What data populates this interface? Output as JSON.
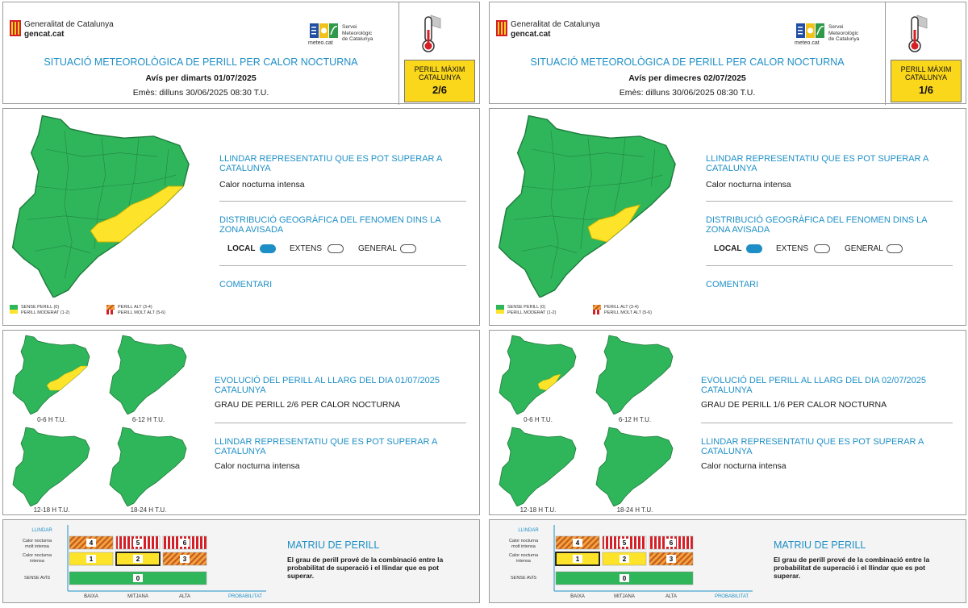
{
  "colors": {
    "danger_none": "#2fb55a",
    "danger_moderate": "#fde42a",
    "danger_high": "#e07c3a",
    "danger_very_high": "#d41f26",
    "accent": "#1e8fc6",
    "alert_box": "#fbd71c"
  },
  "shared": {
    "generalitat": "Generalitat de Catalunya",
    "gencat": "gencat.cat",
    "meteo": "meteo.cat",
    "servei": [
      "Servei",
      "Meteorològic",
      "de Catalunya"
    ],
    "max_label_1": "PERILL MÀXIM",
    "max_label_2": "CATALUNYA",
    "title": "SITUACIÓ METEOROLÒGICA DE PERILL PER CALOR NOCTURNA",
    "emes": "Emès: dilluns 30/06/2025 08:30 T.U.",
    "llindar_title": "LLINDAR REPRESENTATIU QUE ES POT SUPERAR A CATALUNYA",
    "llindar_value": "Calor nocturna intensa",
    "distrib_title": "DISTRIBUCIÓ GEOGRÀFICA DEL FENOMEN DINS LA ZONA AVISADA",
    "opt_local": "LOCAL",
    "opt_extens": "EXTENS",
    "opt_general": "GENERAL",
    "comentari": "COMENTARI",
    "legend": {
      "none": "SENSE PERILL (0)",
      "moderate": "PERILL MODERAT (1-2)",
      "high": "PERILL ALT (3-4)",
      "very_high": "PERILL MOLT ALT (5-6)"
    },
    "period_labels": [
      "0-6 H T.U.",
      "6-12 H T.U.",
      "12-18 H T.U.",
      "18-24 H T.U."
    ],
    "matrix_title": "MATRIU DE PERILL",
    "matrix_text": "El grau de perill prové de la combinació entre la probabilitat de superació i el llindar que es pot superar.",
    "matrix": {
      "llindar": "LLINDAR",
      "row_very_intense_1": "Calor nocturna",
      "row_very_intense_2": "molt intensa",
      "row_intense_1": "Calor nocturna",
      "row_intense_2": "intensa",
      "row_none": "SENSE AVÍS",
      "col_low": "BAIXA",
      "col_mid": "MITJANA",
      "col_high": "ALTA",
      "probabilitat": "PROBABILITAT",
      "levels_top": [
        "4",
        "5",
        "6"
      ],
      "levels_mid": [
        "1",
        "2",
        "3"
      ],
      "level_none": "0"
    }
  },
  "bulletins": [
    {
      "avis": "Avís per dimarts 01/07/2025",
      "max_level": "2/6",
      "selected_cell": "mid-2",
      "evolution_title": "EVOLUCIÓ DEL PERILL AL LLARG DEL DIA 01/07/2025 CATALUNYA",
      "grade_text": "GRAU DE PERILL 2/6 PER CALOR NOCTURNA"
    },
    {
      "avis": "Avís per dimecres 02/07/2025",
      "max_level": "1/6",
      "selected_cell": "mid-1",
      "evolution_title": "EVOLUCIÓ DEL PERILL AL LLARG DEL DIA 02/07/2025 CATALUNYA",
      "grade_text": "GRAU DE PERILL 1/6 PER CALOR NOCTURNA"
    }
  ]
}
